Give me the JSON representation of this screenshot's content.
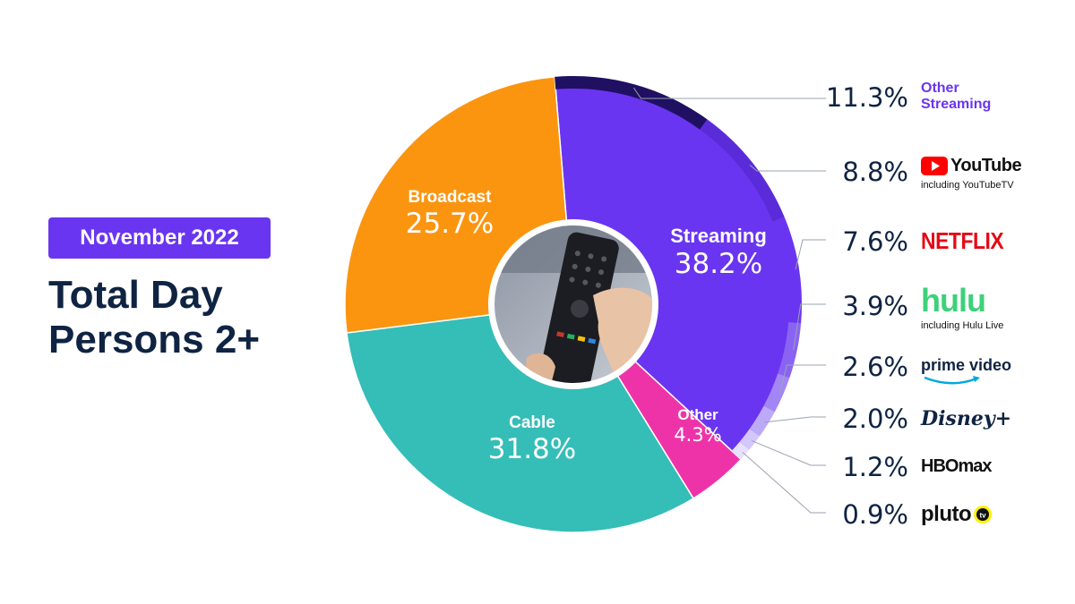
{
  "header": {
    "date_badge": "November 2022",
    "title_line1": "Total Day",
    "title_line2": "Persons 2+"
  },
  "chart_data": {
    "type": "pie",
    "slices": [
      {
        "name": "Streaming",
        "value": 38.2,
        "label": "38.2%",
        "color": "#6a35f0"
      },
      {
        "name": "Other",
        "value": 4.3,
        "label": "4.3%",
        "color": "#ee33a9"
      },
      {
        "name": "Cable",
        "value": 31.8,
        "label": "31.8%",
        "color": "#35bdb8"
      },
      {
        "name": "Broadcast",
        "value": 25.7,
        "label": "25.7%",
        "color": "#fb9510"
      }
    ],
    "streaming_breakdown": [
      {
        "name": "Other Streaming",
        "value": 11.3,
        "label": "11.3%",
        "color": "#1f1062"
      },
      {
        "name": "YouTube",
        "value": 8.8,
        "label": "8.8%",
        "sublabel": "including YouTubeTV",
        "color": "#5a2bd9"
      },
      {
        "name": "NETFLIX",
        "value": 7.6,
        "label": "7.6%",
        "color": "#6a35f0"
      },
      {
        "name": "hulu",
        "value": 3.9,
        "label": "3.9%",
        "sublabel": "including Hulu Live",
        "color": "#8a63f3"
      },
      {
        "name": "prime video",
        "value": 2.6,
        "label": "2.6%",
        "color": "#a386f5"
      },
      {
        "name": "Disney+",
        "value": 2.0,
        "label": "2.0%",
        "color": "#bca9f8"
      },
      {
        "name": "HBO max",
        "value": 1.2,
        "label": "1.2%",
        "color": "#d4c7fb"
      },
      {
        "name": "pluto tv",
        "value": 0.9,
        "label": "0.9%",
        "color": "#e8e0fd"
      }
    ],
    "brand_labels": {
      "other_streaming_line1": "Other",
      "other_streaming_line2": "Streaming",
      "youtube": "YouTube",
      "youtube_sub": "including YouTubeTV",
      "netflix": "NETFLIX",
      "hulu": "hulu",
      "hulu_sub": "including Hulu Live",
      "prime": "prime video",
      "disney": "Disney+",
      "hbo": "HBOmax",
      "pluto": "pluto"
    },
    "colors": {
      "navy_text": "#0f2342",
      "accent_purple": "#6a35f0",
      "leader_line": "#9aa3b0"
    }
  }
}
